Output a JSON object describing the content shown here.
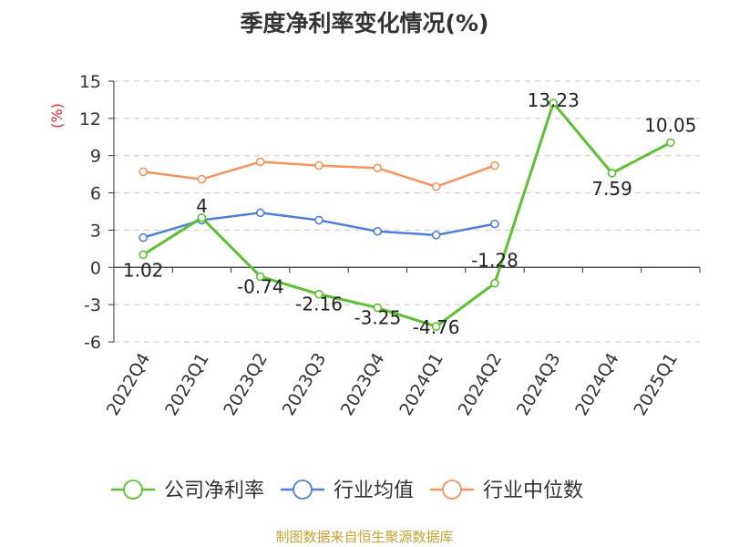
{
  "chart_data": {
    "type": "line",
    "title": "季度净利率变化情况(%)",
    "ylabel": "(%)",
    "xlabel": "",
    "categories": [
      "2022Q4",
      "2023Q1",
      "2023Q2",
      "2023Q3",
      "2023Q4",
      "2024Q1",
      "2024Q2",
      "2024Q3",
      "2024Q4",
      "2025Q1"
    ],
    "ylim": [
      -6,
      15
    ],
    "yticks": [
      -6,
      -3,
      0,
      3,
      6,
      9,
      12,
      15
    ],
    "grid": true,
    "legend": "bottom",
    "series": [
      {
        "name": "公司净利率",
        "color": "#5cc030",
        "values": [
          1.02,
          4,
          -0.74,
          -2.16,
          -3.25,
          -4.76,
          -1.28,
          13.23,
          7.59,
          10.05
        ],
        "labels": [
          "1.02",
          "4",
          "-0.74",
          "-2.16",
          "-3.25",
          "-4.76",
          "-1.28",
          "13.23",
          "7.59",
          "10.05"
        ]
      },
      {
        "name": "行业均值",
        "color": "#4f7fd8",
        "values": [
          2.4,
          3.8,
          4.4,
          3.8,
          2.9,
          2.6,
          3.5,
          null,
          null,
          null
        ]
      },
      {
        "name": "行业中位数",
        "color": "#f4935c",
        "values": [
          7.7,
          7.1,
          8.5,
          8.2,
          8.0,
          6.5,
          8.2,
          null,
          null,
          null
        ]
      }
    ]
  },
  "source": "制图数据来自恒生聚源数据库"
}
